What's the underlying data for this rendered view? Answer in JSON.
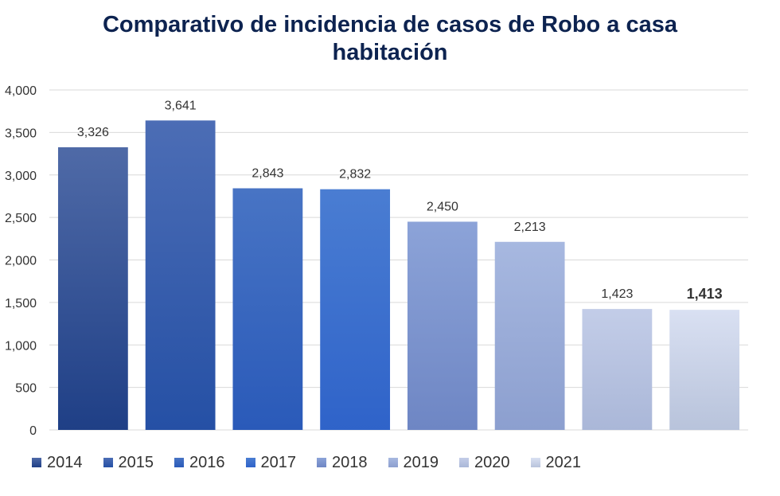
{
  "chart_data": {
    "type": "bar",
    "title": "Comparativo de incidencia de casos de Robo a casa habitación",
    "title_lines": [
      "Comparativo de incidencia de casos de Robo a casa",
      "habitación"
    ],
    "categories": [
      "2014",
      "2015",
      "2016",
      "2017",
      "2018",
      "2019",
      "2020",
      "2021"
    ],
    "values": [
      3326,
      3641,
      2843,
      2832,
      2450,
      2213,
      1423,
      1413
    ],
    "value_labels": [
      "3,326",
      "3,641",
      "2,843",
      "2,832",
      "2,450",
      "2,213",
      "1,423",
      "1,413"
    ],
    "highlighted_label_index": 7,
    "xlabel": "",
    "ylabel": "",
    "ylim": [
      0,
      4000
    ],
    "yticks": [
      0,
      500,
      1000,
      1500,
      2000,
      2500,
      3000,
      3500,
      4000
    ],
    "ytick_labels": [
      "0",
      "500",
      "1,000",
      "1,500",
      "2,000",
      "2,500",
      "3,000",
      "3,500",
      "4,000"
    ],
    "grid": true,
    "legend_position": "bottom",
    "colors": {
      "bars_top": [
        "#4f6aa7",
        "#4c6db5",
        "#4874c4",
        "#4a7dd2",
        "#8ca3d8",
        "#a7b8e0",
        "#c3cde8",
        "#d9e0f2"
      ],
      "bars_bottom": [
        "#1f3f86",
        "#2550a5",
        "#2a5ab9",
        "#2f63c9",
        "#6e86c4",
        "#8c9fcf",
        "#aab7d8",
        "#b8c3db"
      ],
      "gridline": "#d9d9d9",
      "axis_text": "#333333",
      "title": "#0d2350"
    }
  }
}
